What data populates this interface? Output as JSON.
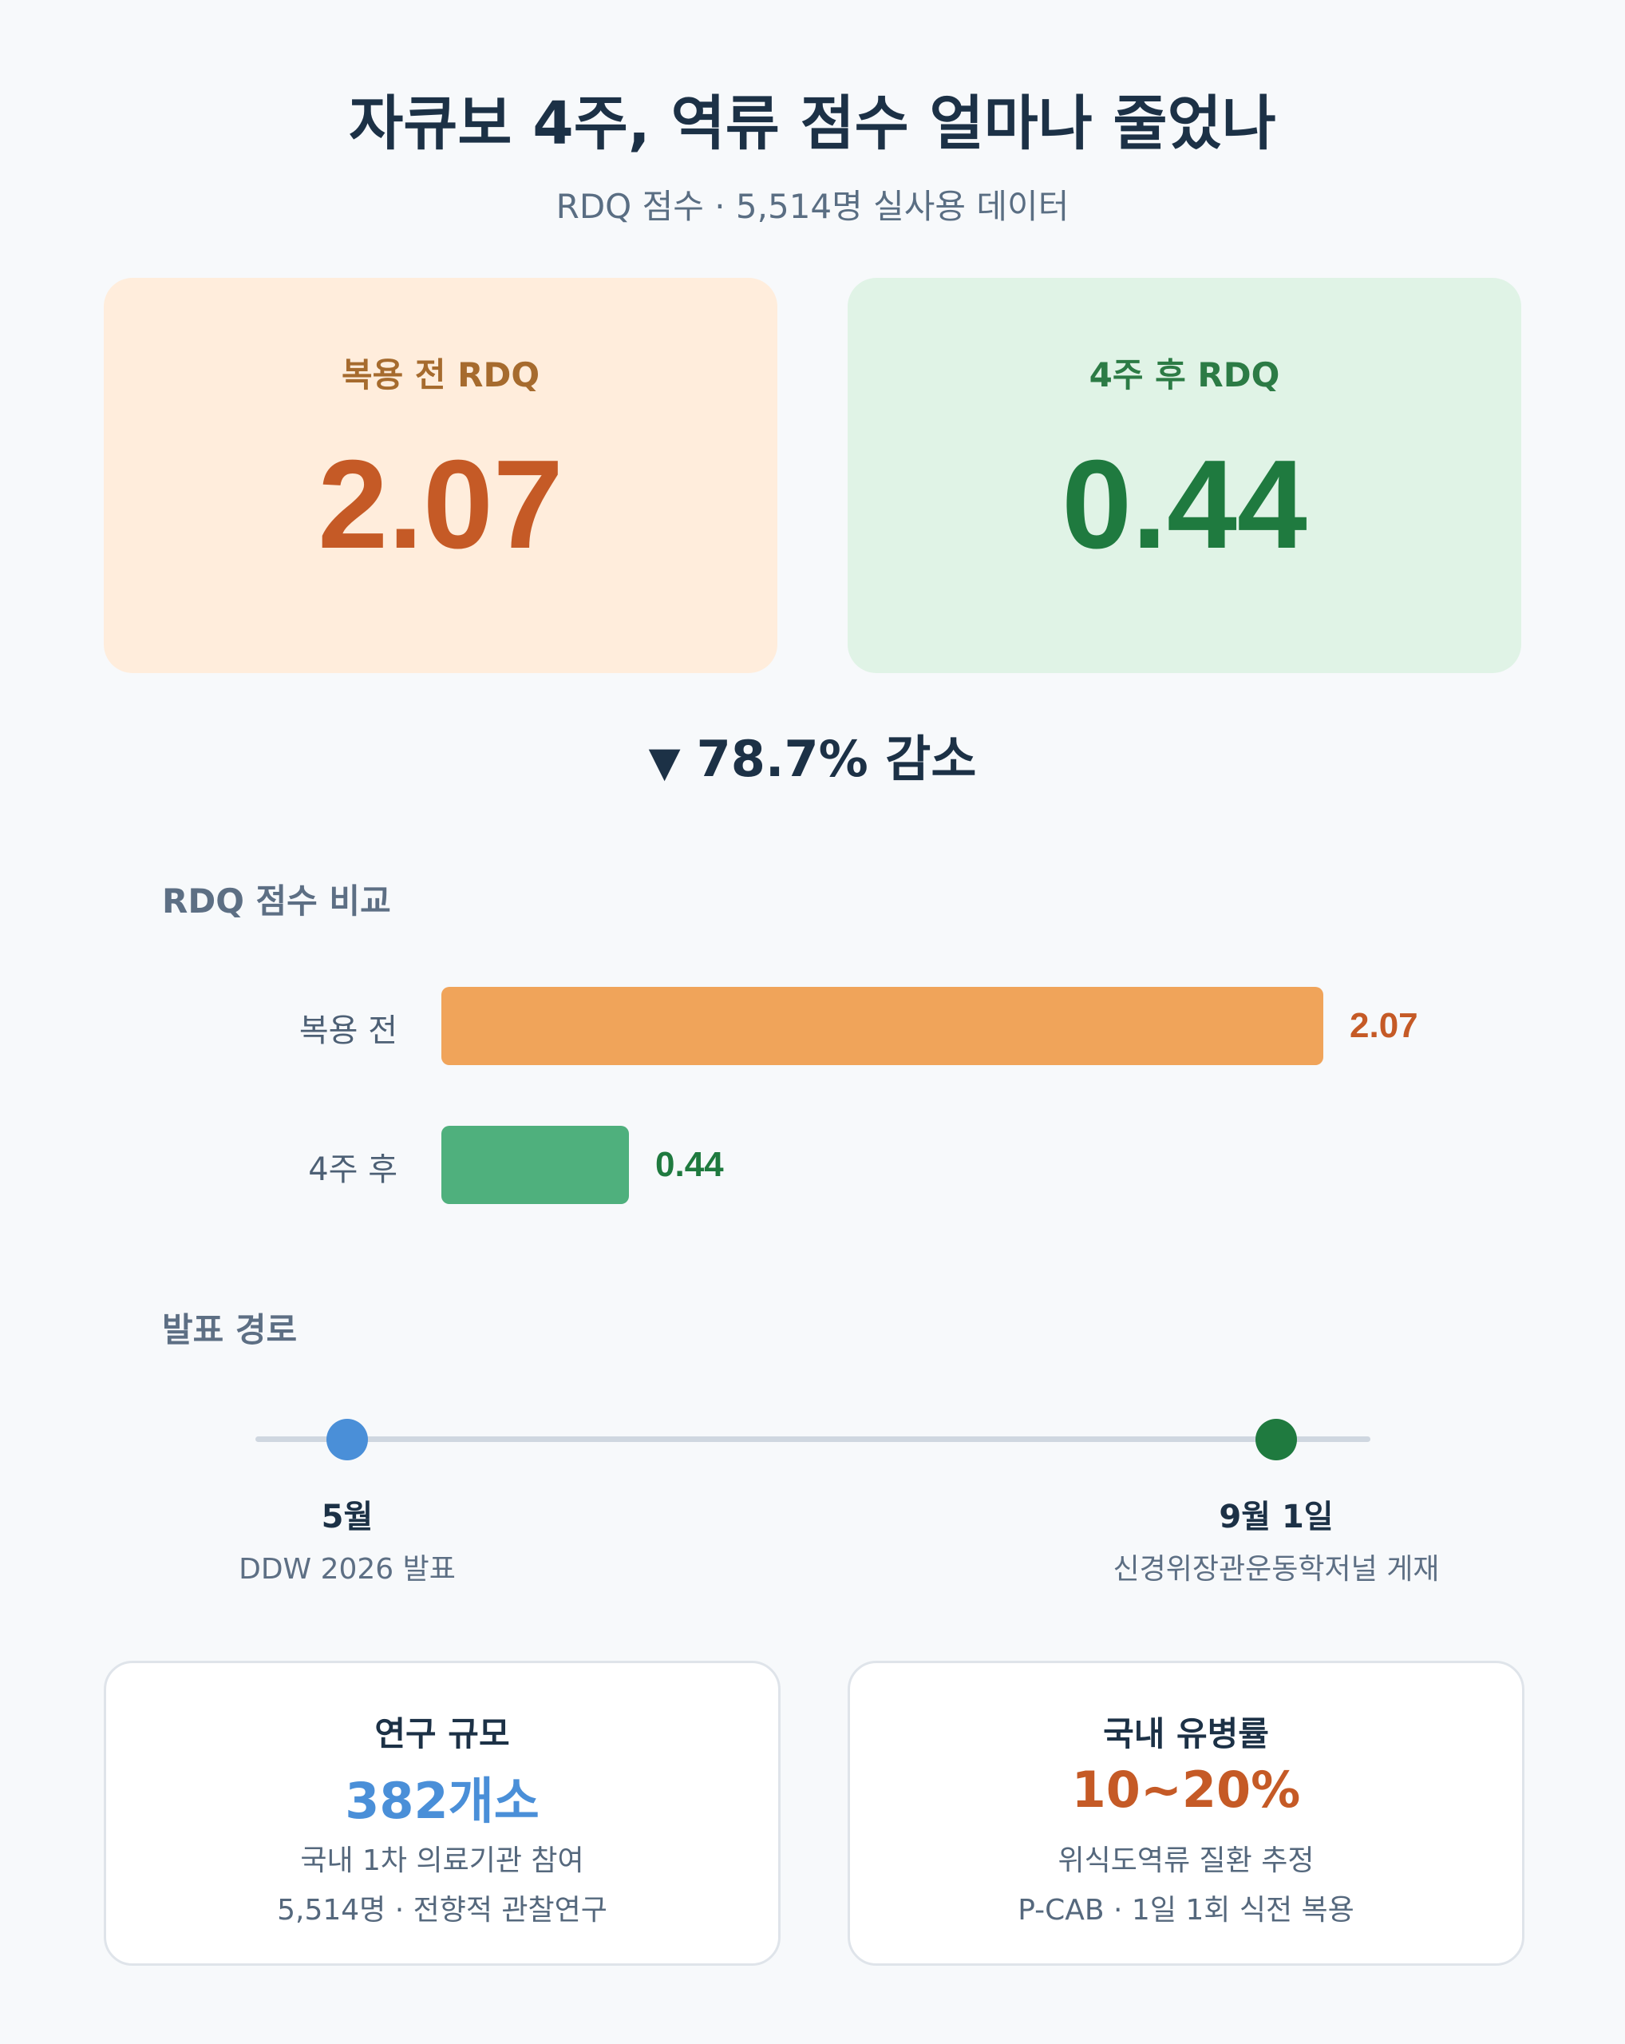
{
  "header": {
    "title": "자큐보 4주, 역류 점수 얼마나 줄었나",
    "subtitle": "RDQ 점수 · 5,514명 실사용 데이터"
  },
  "cards": {
    "before": {
      "label": "복용 전 RDQ",
      "value": "2.07"
    },
    "after": {
      "label": "4주 후 RDQ",
      "value": "0.44"
    }
  },
  "reduction": {
    "arrow": "▼",
    "text": "78.7% 감소"
  },
  "comparison": {
    "section_title": "RDQ 점수 비교"
  },
  "chart_data": {
    "type": "bar",
    "orientation": "horizontal",
    "title": "RDQ 점수 비교",
    "categories": [
      "복용 전",
      "4주 후"
    ],
    "values": [
      2.07,
      0.44
    ],
    "value_labels": [
      "2.07",
      "0.44"
    ],
    "colors": [
      "#f0a45a",
      "#4fb07d"
    ],
    "label_colors": [
      "#c55a26",
      "#1f7a3f"
    ],
    "xlim": [
      0,
      2.07
    ]
  },
  "timeline": {
    "section_title": "발표 경로",
    "points": [
      {
        "date": "5월",
        "desc": "DDW 2026 발표",
        "color": "#4a8fd8"
      },
      {
        "date": "9월 1일",
        "desc": "신경위장관운동학저널 게재",
        "color": "#1f7a3f"
      }
    ]
  },
  "info": {
    "left": {
      "title": "연구 규모",
      "value": "382개소",
      "value_color": "#4a8fd8",
      "line1": "국내 1차 의료기관 참여",
      "line2": "5,514명 · 전향적 관찰연구"
    },
    "right": {
      "title": "국내 유병률",
      "value": "10~20%",
      "value_color": "#c55a26",
      "line1": "위식도역류 질환 추정",
      "line2": "P-CAB · 1일 1회 식전 복용"
    }
  }
}
